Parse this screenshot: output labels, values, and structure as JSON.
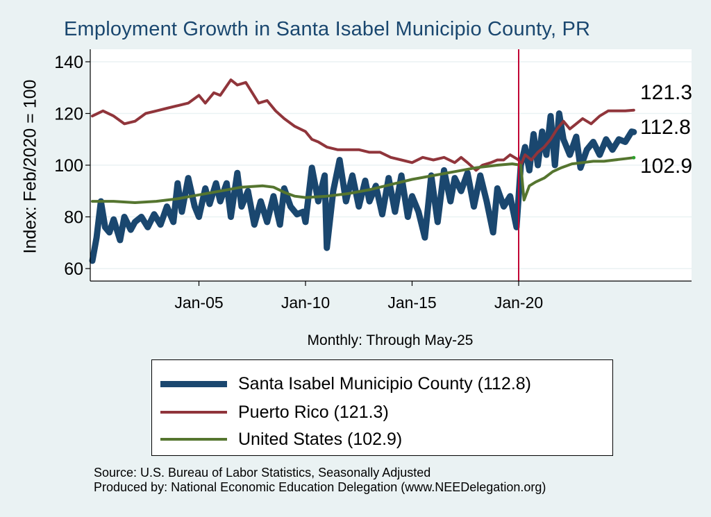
{
  "chart_data": {
    "type": "line",
    "title": "Employment Growth in Santa Isabel Municipio  County, PR",
    "xlabel": "Monthly: Through May-25",
    "ylabel": "Index: Feb/2020 = 100",
    "xlim": [
      2000.0,
      2028.0
    ],
    "ylim": [
      57,
      145
    ],
    "yticks": [
      60,
      80,
      100,
      120,
      140
    ],
    "xticks": [
      {
        "year": 2005,
        "label": "Jan-05"
      },
      {
        "year": 2010,
        "label": "Jan-10"
      },
      {
        "year": 2015,
        "label": "Jan-15"
      },
      {
        "year": 2020,
        "label": "Jan-20"
      }
    ],
    "vline_year": 2020.0,
    "vline_color": "#c10534",
    "series": [
      {
        "name": "Santa Isabel Municipio  County",
        "legend": "Santa Isabel Municipio  County (112.8)",
        "end_label": "112.8",
        "color": "#1a476f",
        "width": 9,
        "points": [
          [
            2000.0,
            63
          ],
          [
            2000.2,
            72
          ],
          [
            2000.4,
            86
          ],
          [
            2000.6,
            76
          ],
          [
            2000.8,
            74
          ],
          [
            2001.0,
            79
          ],
          [
            2001.3,
            71
          ],
          [
            2001.5,
            80
          ],
          [
            2001.8,
            75
          ],
          [
            2002.0,
            78
          ],
          [
            2002.3,
            80
          ],
          [
            2002.6,
            76
          ],
          [
            2002.9,
            81
          ],
          [
            2003.2,
            77
          ],
          [
            2003.5,
            84
          ],
          [
            2003.8,
            78
          ],
          [
            2004.0,
            93
          ],
          [
            2004.2,
            82
          ],
          [
            2004.5,
            95
          ],
          [
            2004.8,
            84
          ],
          [
            2005.0,
            80
          ],
          [
            2005.3,
            91
          ],
          [
            2005.5,
            85
          ],
          [
            2005.8,
            93
          ],
          [
            2006.0,
            86
          ],
          [
            2006.3,
            93
          ],
          [
            2006.5,
            80
          ],
          [
            2006.8,
            97
          ],
          [
            2007.0,
            84
          ],
          [
            2007.3,
            90
          ],
          [
            2007.6,
            77
          ],
          [
            2007.9,
            86
          ],
          [
            2008.2,
            78
          ],
          [
            2008.5,
            88
          ],
          [
            2008.8,
            77
          ],
          [
            2009.0,
            91
          ],
          [
            2009.3,
            84
          ],
          [
            2009.6,
            81
          ],
          [
            2009.9,
            82
          ],
          [
            2010.0,
            78
          ],
          [
            2010.3,
            99
          ],
          [
            2010.6,
            86
          ],
          [
            2010.9,
            96
          ],
          [
            2011.0,
            68
          ],
          [
            2011.3,
            90
          ],
          [
            2011.6,
            102
          ],
          [
            2011.9,
            86
          ],
          [
            2012.2,
            96
          ],
          [
            2012.5,
            84
          ],
          [
            2012.8,
            94
          ],
          [
            2013.0,
            86
          ],
          [
            2013.3,
            92
          ],
          [
            2013.6,
            81
          ],
          [
            2013.9,
            95
          ],
          [
            2014.2,
            82
          ],
          [
            2014.5,
            96
          ],
          [
            2014.8,
            80
          ],
          [
            2015.0,
            88
          ],
          [
            2015.3,
            82
          ],
          [
            2015.6,
            72
          ],
          [
            2015.9,
            96
          ],
          [
            2016.2,
            78
          ],
          [
            2016.5,
            98
          ],
          [
            2016.8,
            86
          ],
          [
            2017.0,
            95
          ],
          [
            2017.3,
            90
          ],
          [
            2017.6,
            97
          ],
          [
            2017.9,
            84
          ],
          [
            2018.2,
            96
          ],
          [
            2018.5,
            86
          ],
          [
            2018.8,
            74
          ],
          [
            2019.0,
            91
          ],
          [
            2019.3,
            84
          ],
          [
            2019.6,
            88
          ],
          [
            2019.9,
            76
          ],
          [
            2020.1,
            100
          ],
          [
            2020.3,
            107
          ],
          [
            2020.5,
            98
          ],
          [
            2020.7,
            112
          ],
          [
            2020.9,
            100
          ],
          [
            2021.1,
            113
          ],
          [
            2021.3,
            104
          ],
          [
            2021.5,
            119
          ],
          [
            2021.7,
            100
          ],
          [
            2021.9,
            120
          ],
          [
            2022.1,
            110
          ],
          [
            2022.4,
            104
          ],
          [
            2022.7,
            111
          ],
          [
            2022.9,
            99
          ],
          [
            2023.2,
            106
          ],
          [
            2023.5,
            109
          ],
          [
            2023.8,
            104
          ],
          [
            2024.1,
            110
          ],
          [
            2024.4,
            106
          ],
          [
            2024.7,
            110
          ],
          [
            2025.0,
            109
          ],
          [
            2025.3,
            113
          ],
          [
            2025.4,
            112.8
          ]
        ]
      },
      {
        "name": "Puerto Rico",
        "legend": "Puerto Rico (121.3)",
        "end_label": "121.3",
        "color": "#90353b",
        "width": 4,
        "points": [
          [
            2000.0,
            119
          ],
          [
            2000.5,
            121
          ],
          [
            2001.0,
            119
          ],
          [
            2001.5,
            116
          ],
          [
            2002.0,
            117
          ],
          [
            2002.5,
            120
          ],
          [
            2003.0,
            121
          ],
          [
            2003.5,
            122
          ],
          [
            2004.0,
            123
          ],
          [
            2004.5,
            124
          ],
          [
            2005.0,
            127
          ],
          [
            2005.3,
            124
          ],
          [
            2005.7,
            128
          ],
          [
            2006.0,
            127
          ],
          [
            2006.5,
            133
          ],
          [
            2006.8,
            131
          ],
          [
            2007.2,
            132
          ],
          [
            2007.5,
            128
          ],
          [
            2007.8,
            124
          ],
          [
            2008.2,
            125
          ],
          [
            2008.6,
            121
          ],
          [
            2009.0,
            118
          ],
          [
            2009.5,
            115
          ],
          [
            2010.0,
            113
          ],
          [
            2010.3,
            110
          ],
          [
            2010.6,
            109
          ],
          [
            2011.0,
            107
          ],
          [
            2011.5,
            106
          ],
          [
            2012.0,
            106
          ],
          [
            2012.5,
            106
          ],
          [
            2013.0,
            105
          ],
          [
            2013.5,
            105
          ],
          [
            2014.0,
            103
          ],
          [
            2014.5,
            102
          ],
          [
            2015.0,
            101
          ],
          [
            2015.5,
            103
          ],
          [
            2016.0,
            102
          ],
          [
            2016.5,
            103
          ],
          [
            2017.0,
            101
          ],
          [
            2017.3,
            103
          ],
          [
            2017.6,
            101
          ],
          [
            2018.0,
            98
          ],
          [
            2018.3,
            100
          ],
          [
            2018.7,
            101
          ],
          [
            2019.0,
            102
          ],
          [
            2019.3,
            102
          ],
          [
            2019.6,
            104
          ],
          [
            2020.0,
            102
          ],
          [
            2020.1,
            100
          ],
          [
            2020.3,
            104
          ],
          [
            2020.6,
            102
          ],
          [
            2020.9,
            105
          ],
          [
            2021.2,
            107
          ],
          [
            2021.5,
            110
          ],
          [
            2021.8,
            114
          ],
          [
            2022.1,
            117
          ],
          [
            2022.4,
            114
          ],
          [
            2022.7,
            116
          ],
          [
            2023.0,
            118
          ],
          [
            2023.4,
            116
          ],
          [
            2023.8,
            119
          ],
          [
            2024.2,
            121
          ],
          [
            2024.6,
            121
          ],
          [
            2025.0,
            121
          ],
          [
            2025.4,
            121.3
          ]
        ]
      },
      {
        "name": "United States",
        "legend": "United States (102.9)",
        "end_label": "102.9",
        "color": "#55752f",
        "width": 4,
        "points": [
          [
            2000.0,
            86
          ],
          [
            2001.0,
            86
          ],
          [
            2002.0,
            85.5
          ],
          [
            2003.0,
            86
          ],
          [
            2004.0,
            87
          ],
          [
            2005.0,
            88.5
          ],
          [
            2006.0,
            90
          ],
          [
            2007.0,
            91.5
          ],
          [
            2008.0,
            92
          ],
          [
            2008.5,
            91.5
          ],
          [
            2009.0,
            89.5
          ],
          [
            2009.5,
            88
          ],
          [
            2010.0,
            87.5
          ],
          [
            2011.0,
            88
          ],
          [
            2012.0,
            89
          ],
          [
            2013.0,
            90.5
          ],
          [
            2014.0,
            92.5
          ],
          [
            2015.0,
            94.5
          ],
          [
            2016.0,
            96
          ],
          [
            2017.0,
            97.5
          ],
          [
            2018.0,
            99
          ],
          [
            2019.0,
            100
          ],
          [
            2019.7,
            100.5
          ],
          [
            2020.1,
            100
          ],
          [
            2020.25,
            86.5
          ],
          [
            2020.5,
            92
          ],
          [
            2020.8,
            93.5
          ],
          [
            2021.2,
            95
          ],
          [
            2021.6,
            97.5
          ],
          [
            2022.0,
            99
          ],
          [
            2022.5,
            100.5
          ],
          [
            2023.0,
            101
          ],
          [
            2023.5,
            101.5
          ],
          [
            2024.0,
            101.5
          ],
          [
            2024.5,
            102
          ],
          [
            2025.0,
            102.5
          ],
          [
            2025.4,
            102.9
          ]
        ]
      }
    ]
  },
  "source_line": "Source: U.S. Bureau of Labor Statistics, Seasonally Adjusted",
  "produced_line": "Produced by: National Economic Education Delegation (www.NEEDelegation.org)"
}
